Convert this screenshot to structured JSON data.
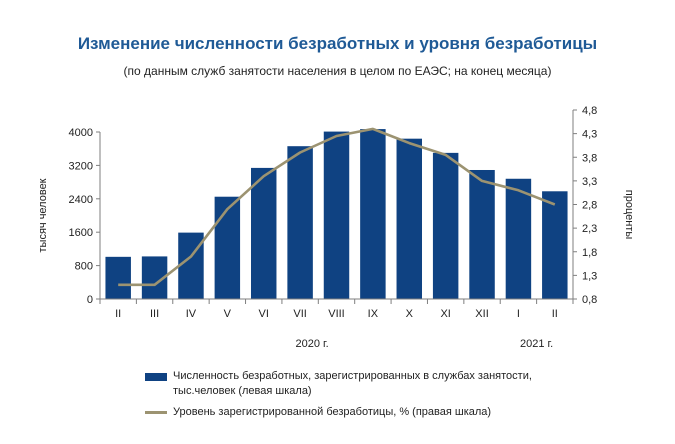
{
  "title": "Изменение численности безработных и уровня безработицы",
  "subtitle": "(по данным служб занятости населения в целом по ЕАЭС; на конец месяца)",
  "chart_data": {
    "type": "bar",
    "categories": [
      "II",
      "III",
      "IV",
      "V",
      "VI",
      "VII",
      "VIII",
      "IX",
      "X",
      "XI",
      "XII",
      "I",
      "II"
    ],
    "year_labels": [
      "2020 г.",
      "2021 г."
    ],
    "series": [
      {
        "name": "Численность безработных, зарегистрированных в  службах занятости, тыс.человек (левая шкала)",
        "type": "bar",
        "axis": "left",
        "color": "#0f4282",
        "values": [
          1010,
          1020,
          1590,
          2450,
          3140,
          3660,
          4010,
          4070,
          3840,
          3500,
          3090,
          2880,
          2580
        ]
      },
      {
        "name": "Уровень зарегистрированной безработицы, % (правая шкала)",
        "type": "line",
        "axis": "right",
        "color": "#9c9371",
        "values": [
          1.1,
          1.1,
          1.7,
          2.7,
          3.4,
          3.9,
          4.25,
          4.4,
          4.1,
          3.85,
          3.3,
          3.1,
          2.8
        ]
      }
    ],
    "ylabel": "тысяч человек",
    "y2label": "проценты",
    "yticks": [
      "0",
      "800",
      "1600",
      "2400",
      "3200",
      "4000"
    ],
    "y2ticks": [
      "0,8",
      "1,3",
      "1,8",
      "2,3",
      "2,8",
      "3,3",
      "3,8",
      "4,3",
      "4,8"
    ],
    "ylim": [
      0,
      4000
    ],
    "y2lim": [
      0.8,
      4.8
    ],
    "grid": false,
    "legend_position": "bottom"
  }
}
